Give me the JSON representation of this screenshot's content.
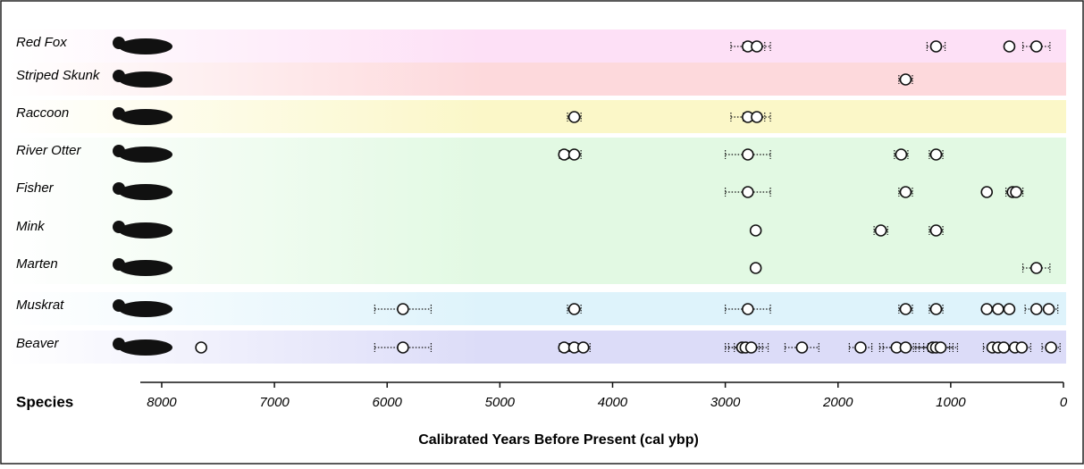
{
  "chart_data": {
    "type": "scatter",
    "x_label": "Calibrated Years Before Present (cal ybp)",
    "y_label": "Species",
    "xlim": [
      8190,
      0
    ],
    "xticks": [
      8000,
      7000,
      6000,
      5000,
      4000,
      3000,
      2000,
      1000,
      0
    ],
    "series": [
      {
        "name": "Red Fox",
        "color": "#fde0f6",
        "values": [
          2800,
          2720,
          1130,
          480,
          240
        ],
        "errors": [
          150,
          120,
          80,
          0,
          120
        ]
      },
      {
        "name": "Striped Skunk",
        "color": "#fdd9dc",
        "values": [
          1400
        ],
        "errors": [
          60
        ]
      },
      {
        "name": "Raccoon",
        "color": "#fbf7c8",
        "values": [
          4340,
          2800,
          2720
        ],
        "errors": [
          60,
          150,
          120
        ]
      },
      {
        "name": "River Otter",
        "color": "#e2f9e3",
        "values": [
          4430,
          4340,
          2800,
          1440,
          1130
        ],
        "errors": [
          40,
          60,
          200,
          60,
          60
        ]
      },
      {
        "name": "Fisher",
        "color": "#e2f9e3",
        "values": [
          2800,
          1400,
          680,
          450,
          420
        ],
        "errors": [
          200,
          60,
          0,
          60,
          60
        ]
      },
      {
        "name": "Mink",
        "color": "#e2f9e3",
        "values": [
          2730,
          1620,
          1130
        ],
        "errors": [
          0,
          60,
          60
        ]
      },
      {
        "name": "Marten",
        "color": "#e2f9e3",
        "values": [
          2730,
          240
        ],
        "errors": [
          0,
          120
        ]
      },
      {
        "name": "Muskrat",
        "color": "#def3fb",
        "values": [
          5860,
          4340,
          2800,
          1400,
          1130,
          680,
          580,
          480,
          240,
          130
        ],
        "errors": [
          250,
          60,
          200,
          60,
          60,
          0,
          0,
          0,
          100,
          80
        ]
      },
      {
        "name": "Beaver",
        "color": "#dcdcf8",
        "values": [
          7650,
          5860,
          4430,
          4340,
          4260,
          2850,
          2820,
          2770,
          2320,
          1800,
          1480,
          1400,
          1160,
          1130,
          1090,
          630,
          580,
          530,
          430,
          370,
          110
        ],
        "errors": [
          0,
          250,
          40,
          40,
          60,
          150,
          150,
          150,
          150,
          100,
          150,
          200,
          150,
          150,
          150,
          80,
          80,
          80,
          80,
          80,
          80
        ]
      }
    ]
  }
}
